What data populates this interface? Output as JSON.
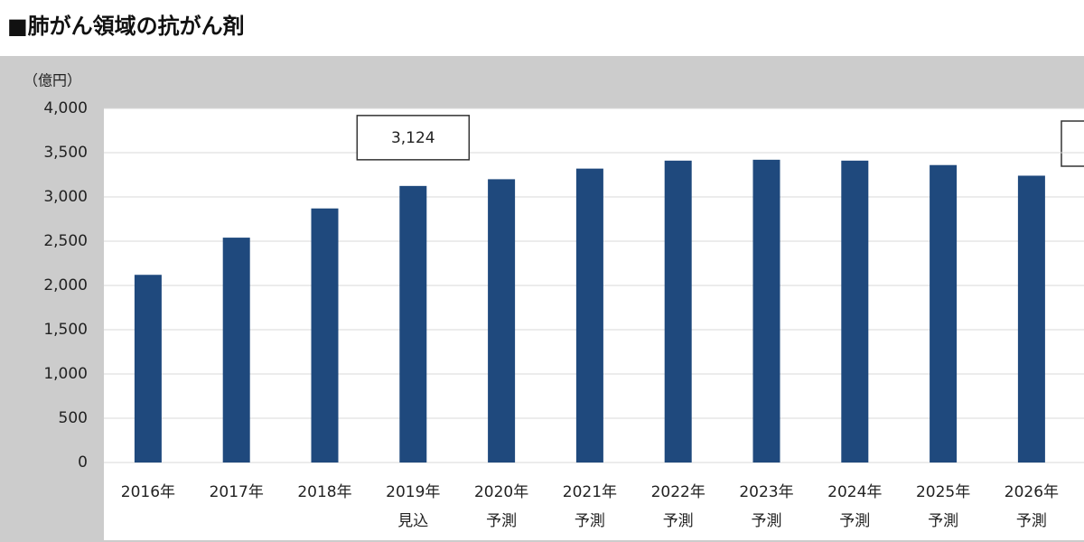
{
  "chart_data": {
    "type": "bar",
    "title": "■肺がん領域の抗がん剤",
    "y_axis_label": "（億円）",
    "categories": [
      "2016年",
      "2017年",
      "2018年",
      "2019年",
      "2020年",
      "2021年",
      "2022年",
      "2023年",
      "2024年",
      "2025年",
      "2026年"
    ],
    "category_notes": [
      null,
      null,
      null,
      "見込",
      "予測",
      "予測",
      "予測",
      "予測",
      "予測",
      "予測",
      "予測"
    ],
    "values": [
      2120,
      2540,
      2870,
      3124,
      3200,
      3320,
      3410,
      3420,
      3410,
      3360,
      3240
    ],
    "value_labels": [
      null,
      null,
      null,
      "3,124",
      null,
      null,
      null,
      null,
      null,
      null,
      null
    ],
    "color": "#1f497d",
    "ylim": [
      0,
      4000
    ],
    "yticks": [
      0,
      500,
      {
        "value": 1000,
        "label": "1,000"
      },
      {
        "value": 1500,
        "label": "1,500"
      },
      {
        "value": 2000,
        "label": "2,000"
      },
      {
        "value": 2500,
        "label": "2,500"
      },
      {
        "value": 3000,
        "label": "3,000"
      },
      {
        "value": 3500,
        "label": "3,500"
      },
      {
        "value": 4000,
        "label": "4,000"
      }
    ],
    "grid": true
  }
}
